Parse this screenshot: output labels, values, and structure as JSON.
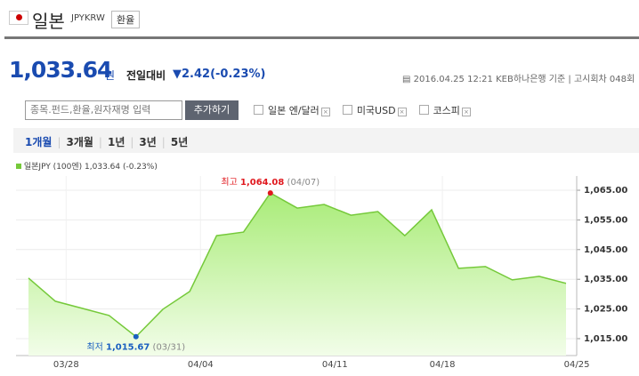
{
  "header": {
    "title": "일본",
    "code": "JPYKRW",
    "button": "환율"
  },
  "quote": {
    "price": "1,033.64",
    "unit": "원",
    "change_label": "전일대비",
    "change": "2.42",
    "change_pct": "(-0.23%)",
    "datetime": "2016.04.25 12:21",
    "source": "KEB하나은행 기준",
    "round": "고시회차 048회"
  },
  "search": {
    "placeholder": "종목.펀드,환율,원자재명 입력",
    "button": "추가하기",
    "options": [
      "일본 엔/달러",
      "미국USD",
      "코스피"
    ]
  },
  "periods": [
    "1개월",
    "3개월",
    "1년",
    "3년",
    "5년"
  ],
  "chart_data": {
    "type": "area",
    "categories": [
      null,
      "03/28",
      null,
      null,
      null,
      null,
      "04/04",
      null,
      null,
      null,
      null,
      "04/11",
      null,
      null,
      null,
      "04/18",
      null,
      null,
      null,
      null,
      "04/25"
    ],
    "series": [
      {
        "name": "일본JPY (100엔)",
        "color": "#75c93a",
        "values": [
          1035.4,
          1027.6,
          1025.2,
          1022.8,
          1015.67,
          1024.9,
          1030.9,
          1049.7,
          1050.9,
          1064.08,
          1059.0,
          1060.2,
          1056.6,
          1057.8,
          1049.7,
          1058.4,
          1038.7,
          1039.3,
          1034.8,
          1036.0,
          1033.64
        ]
      }
    ],
    "legend_note": "1,033.64 (-0.23%)",
    "ylim": [
      1009.3,
      1069.8
    ],
    "yticks": [
      {
        "value": 1015,
        "label": "1,015.00"
      },
      {
        "value": 1025,
        "label": "1,025.00"
      },
      {
        "value": 1035,
        "label": "1,035.00"
      },
      {
        "value": 1045,
        "label": "1,045.00"
      },
      {
        "value": 1055,
        "label": "1,055.00"
      },
      {
        "value": 1065,
        "label": "1,065.00"
      }
    ],
    "annotations": {
      "max": {
        "label": "최고",
        "value": "1,064.08",
        "date": "(04/07)"
      },
      "min": {
        "label": "최저",
        "value": "1,015.67",
        "date": "(03/31)"
      }
    },
    "grid": true
  }
}
